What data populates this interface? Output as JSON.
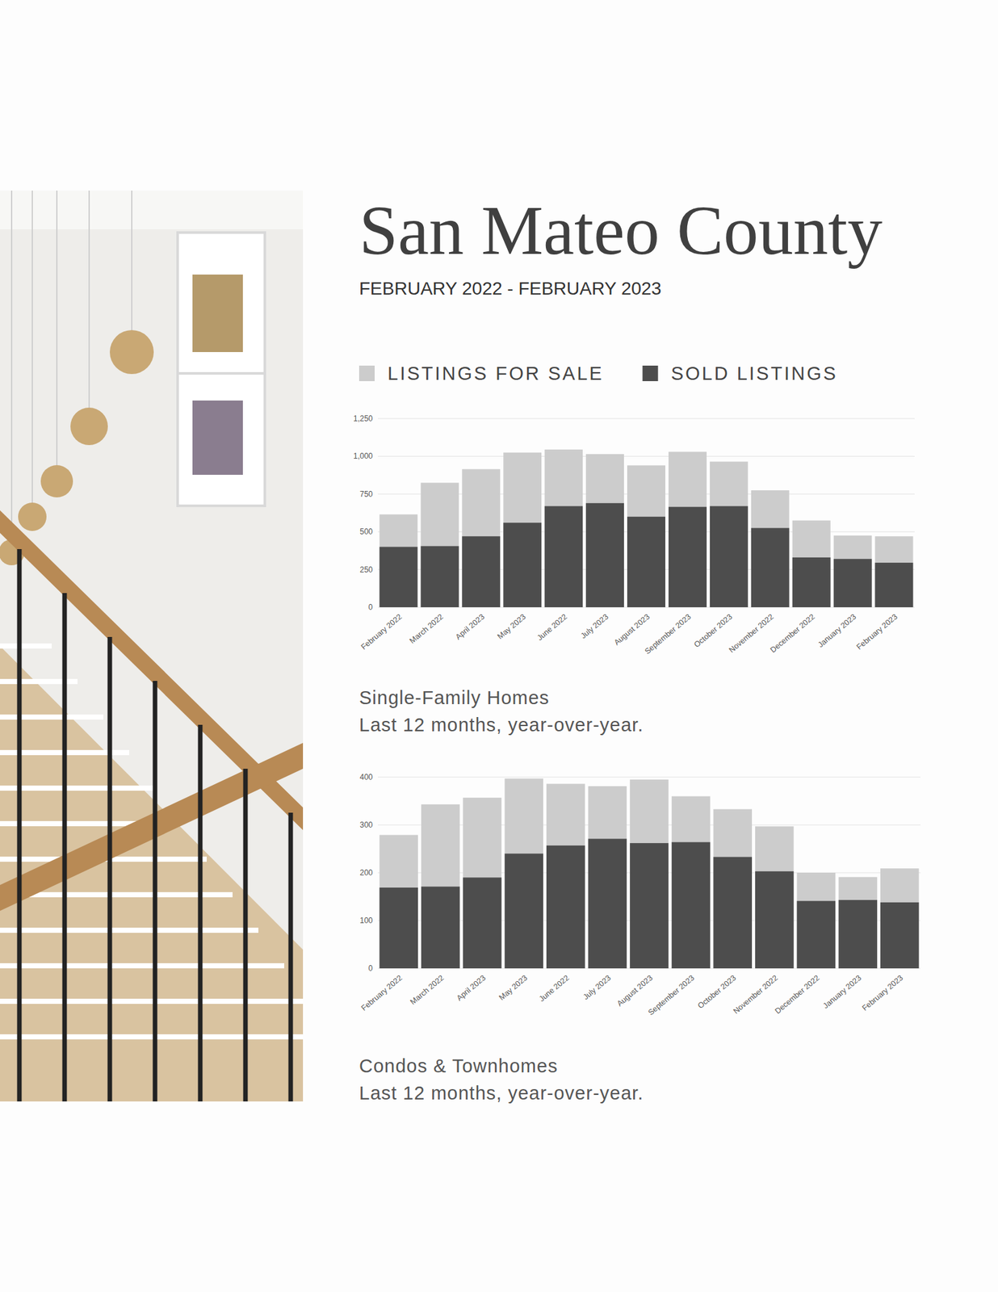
{
  "header": {
    "title": "San Mateo County",
    "subtitle": "FEBRUARY 2022 - FEBRUARY 2023"
  },
  "chart_data": [
    {
      "type": "bar",
      "title": "Single-Family Homes",
      "subtitle": "Last 12 months, year-over-year.",
      "categories": [
        "February 2022",
        "March 2022",
        "April 2023",
        "May 2023",
        "June 2022",
        "July 2023",
        "August 2023",
        "September 2023",
        "October 2023",
        "November 2022",
        "December 2022",
        "January 2023",
        "February 2023"
      ],
      "series": [
        {
          "name": "LISTINGS FOR SALE",
          "color": "#cccccc",
          "values": [
            615,
            825,
            915,
            1025,
            1045,
            1015,
            940,
            1030,
            965,
            775,
            575,
            475,
            470
          ]
        },
        {
          "name": "SOLD LISTINGS",
          "color": "#4d4d4d",
          "values": [
            400,
            405,
            470,
            560,
            670,
            690,
            600,
            665,
            670,
            525,
            330,
            320,
            295
          ]
        }
      ],
      "ylim": [
        0,
        1250
      ],
      "yticks": [
        0,
        250,
        500,
        750,
        {
          "value": 1000,
          "label": "1,000"
        },
        {
          "value": 1250,
          "label": "1,250"
        }
      ],
      "grid": true,
      "stacked": false,
      "legend": "top"
    },
    {
      "type": "bar",
      "title": "Condos & Townhomes",
      "subtitle": "Last 12 months, year-over-year.",
      "categories": [
        "February 2022",
        "March 2022",
        "April 2023",
        "May 2023",
        "June 2022",
        "July 2023",
        "August 2023",
        "September 2023",
        "October 2023",
        "November 2022",
        "December 2022",
        "January 2023",
        "February 2023"
      ],
      "series": [
        {
          "color": "#cccccc",
          "values": [
            279,
            343,
            357,
            397,
            386,
            381,
            395,
            360,
            333,
            297,
            200,
            191,
            209
          ]
        },
        {
          "color": "#4d4d4d",
          "values": [
            169,
            171,
            190,
            240,
            257,
            271,
            262,
            264,
            233,
            203,
            141,
            143,
            138
          ]
        }
      ],
      "ylim": [
        0,
        400
      ],
      "yticks": [
        0,
        100,
        200,
        300,
        400
      ],
      "grid": true,
      "stacked": false
    }
  ]
}
